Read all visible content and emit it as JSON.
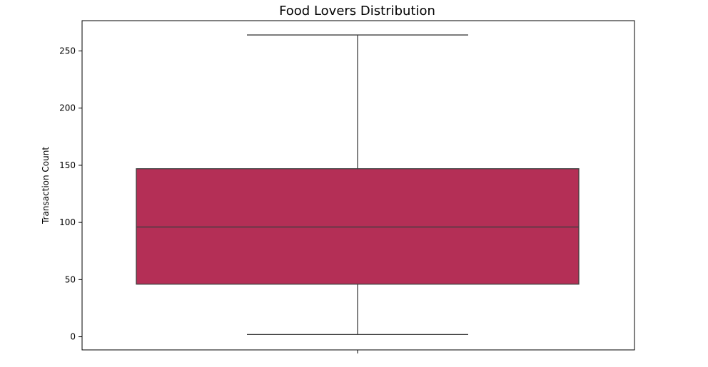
{
  "chart_data": {
    "type": "box",
    "title": "Food Lovers Distribution",
    "xlabel": "",
    "ylabel": "Transaction Count",
    "ylim": [
      -11.5,
      276.5
    ],
    "yticks": [
      0,
      50,
      100,
      150,
      200,
      250
    ],
    "grid": false,
    "box": {
      "whisker_low": 2,
      "q1": 46,
      "median": 96,
      "q3": 147,
      "whisker_high": 264
    },
    "colors": {
      "box_fill": "#b42f56",
      "line": "#3f3f3f",
      "frame": "#000000"
    }
  }
}
